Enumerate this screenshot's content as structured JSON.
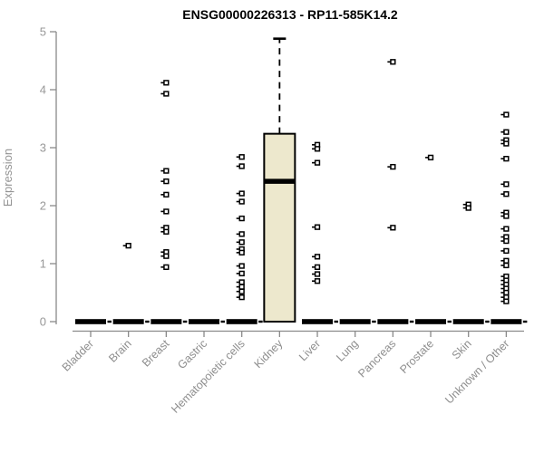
{
  "chart_data": {
    "type": "boxplot",
    "title": "ENSG00000226313 - RP11-585K14.2",
    "ylabel": "Expression",
    "ylim": [
      0,
      5
    ],
    "yticks": [
      0,
      1,
      2,
      3,
      4,
      5
    ],
    "grid": false,
    "legend": "none",
    "categories": [
      "Bladder",
      "Brain",
      "Breast",
      "Gastric",
      "Hematopoietic cells",
      "Kidney",
      "Liver",
      "Lung",
      "Pancreas",
      "Prostate",
      "Skin",
      "Unknown / Other"
    ],
    "boxes": [
      {
        "category": "Bladder",
        "q1": 0,
        "median": 0,
        "q3": 0,
        "whisker_low": 0,
        "whisker_high": 0,
        "outliers": []
      },
      {
        "category": "Brain",
        "q1": 0,
        "median": 0,
        "q3": 0,
        "whisker_low": 0,
        "whisker_high": 0,
        "outliers": [
          1.31
        ]
      },
      {
        "category": "Breast",
        "q1": 0,
        "median": 0,
        "q3": 0,
        "whisker_low": 0,
        "whisker_high": 0,
        "outliers": [
          4.12,
          3.93,
          2.6,
          2.42,
          2.19,
          1.9,
          1.62,
          1.55,
          1.2,
          1.13,
          0.94
        ]
      },
      {
        "category": "Gastric",
        "q1": 0,
        "median": 0,
        "q3": 0,
        "whisker_low": 0,
        "whisker_high": 0,
        "outliers": []
      },
      {
        "category": "Hematopoietic cells",
        "q1": 0,
        "median": 0,
        "q3": 0,
        "whisker_low": 0,
        "whisker_high": 0,
        "outliers": [
          2.84,
          2.68,
          2.21,
          2.07,
          1.78,
          1.51,
          1.37,
          1.25,
          1.19,
          0.96,
          0.83,
          0.68,
          0.6,
          0.52,
          0.42
        ]
      },
      {
        "category": "Kidney",
        "q1": 0,
        "median": 2.42,
        "q3": 3.24,
        "whisker_low": 0,
        "whisker_high": 4.88,
        "outliers": []
      },
      {
        "category": "Liver",
        "q1": 0,
        "median": 0,
        "q3": 0,
        "whisker_low": 0,
        "whisker_high": 0,
        "outliers": [
          3.05,
          2.98,
          2.74,
          1.63,
          1.12,
          0.94,
          0.82,
          0.7
        ]
      },
      {
        "category": "Lung",
        "q1": 0,
        "median": 0,
        "q3": 0,
        "whisker_low": 0,
        "whisker_high": 0,
        "outliers": []
      },
      {
        "category": "Pancreas",
        "q1": 0,
        "median": 0,
        "q3": 0,
        "whisker_low": 0,
        "whisker_high": 0,
        "outliers": [
          4.48,
          2.67,
          1.62
        ]
      },
      {
        "category": "Prostate",
        "q1": 0,
        "median": 0,
        "q3": 0,
        "whisker_low": 0,
        "whisker_high": 0,
        "outliers": [
          2.83
        ]
      },
      {
        "category": "Skin",
        "q1": 0,
        "median": 0,
        "q3": 0,
        "whisker_low": 0,
        "whisker_high": 0,
        "outliers": [
          2.02,
          1.96
        ]
      },
      {
        "category": "Unknown / Other",
        "q1": 0,
        "median": 0,
        "q3": 0,
        "whisker_low": 0,
        "whisker_high": 0,
        "outliers": [
          3.57,
          3.27,
          3.13,
          3.07,
          2.81,
          2.37,
          2.2,
          1.88,
          1.82,
          1.6,
          1.46,
          1.39,
          1.22,
          1.05,
          0.97,
          0.78,
          0.71,
          0.64,
          0.57,
          0.5,
          0.42,
          0.35
        ]
      }
    ],
    "colors": {
      "box_fill": "#ede8cd",
      "box_border": "#000000",
      "median": "#000000",
      "zero_bar": "#000000",
      "outlier_stroke": "#000000",
      "outlier_fill": "#ffffff",
      "axis": "#8a8a8a",
      "tick_label": "#989898",
      "title": "#000000",
      "background": "#ffffff"
    }
  }
}
